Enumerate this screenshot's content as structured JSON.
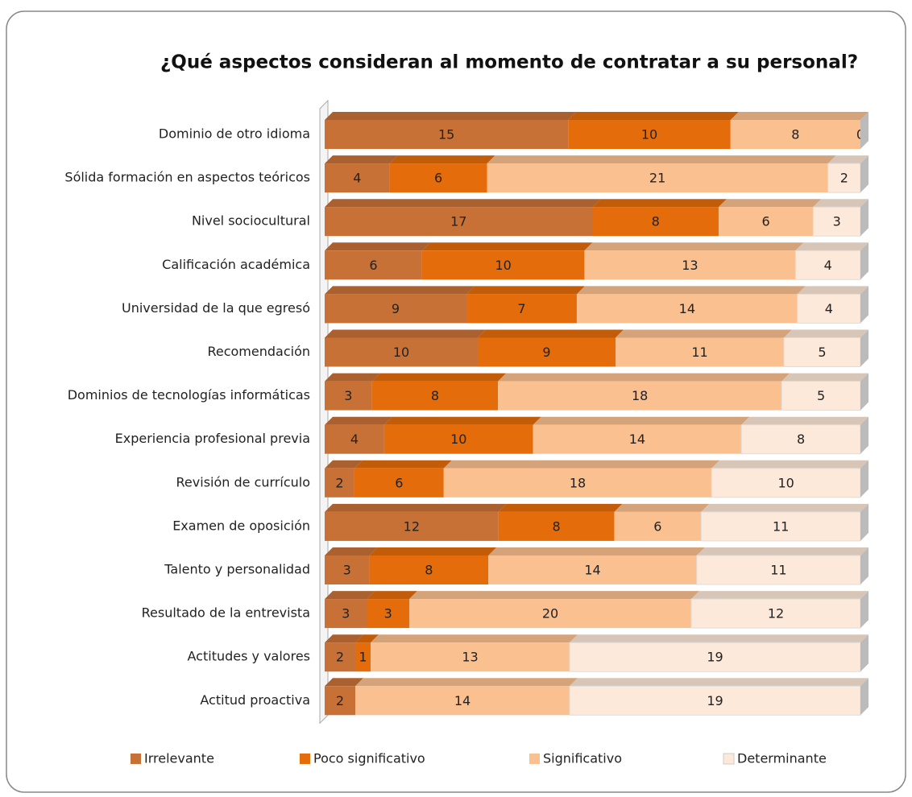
{
  "chart_data": {
    "type": "bar",
    "stacked": "percent",
    "orientation": "horizontal",
    "title": "¿Qué aspectos consideran al momento de contratar a su personal?",
    "categories": [
      "Dominio de otro idioma",
      "Sólida formación en aspectos teóricos",
      "Nivel sociocultural",
      "Calificación académica",
      "Universidad de la que egresó",
      "Recomendación",
      "Dominios de tecnologías informáticas",
      "Experiencia profesional previa",
      "Revisión de currículo",
      "Examen de oposición",
      "Talento y personalidad",
      "Resultado de la entrevista",
      "Actitudes y valores",
      "Actitud proactiva"
    ],
    "series": [
      {
        "name": "Irrelevante",
        "color": "#c87137",
        "values": [
          15,
          4,
          17,
          6,
          9,
          10,
          3,
          4,
          2,
          12,
          3,
          3,
          2,
          2
        ]
      },
      {
        "name": "Poco significativo",
        "color": "#e46c0a",
        "values": [
          10,
          6,
          8,
          10,
          7,
          9,
          8,
          10,
          6,
          8,
          8,
          3,
          1,
          0
        ]
      },
      {
        "name": "Significativo",
        "color": "#fac090",
        "values": [
          8,
          21,
          6,
          13,
          14,
          11,
          18,
          14,
          18,
          6,
          14,
          20,
          13,
          14
        ]
      },
      {
        "name": "Determinante",
        "color": "#fde9d9",
        "values": [
          0,
          2,
          3,
          4,
          4,
          5,
          5,
          8,
          10,
          11,
          11,
          12,
          19,
          19
        ]
      }
    ],
    "legend": "bottom"
  }
}
